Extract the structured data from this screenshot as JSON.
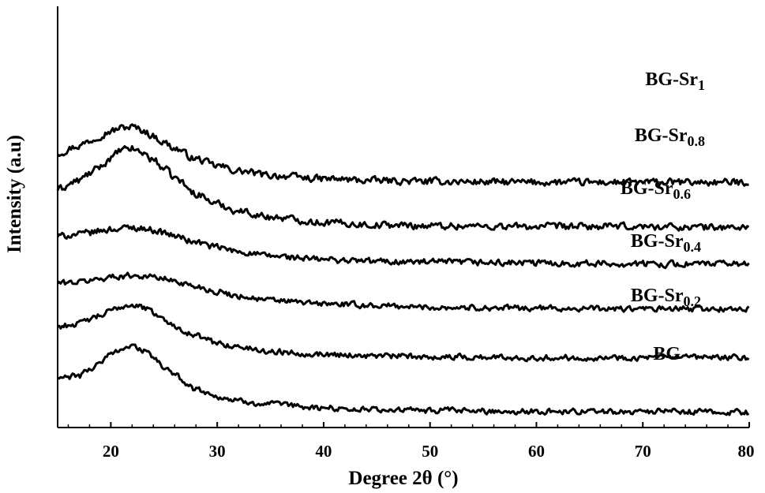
{
  "chart_data": {
    "type": "line",
    "title": "",
    "xlabel": "Degree 2θ (°)",
    "ylabel": "Intensity (a.u)",
    "xlim": [
      15,
      80
    ],
    "xticks": [
      "20",
      "30",
      "40",
      "50",
      "60",
      "70",
      "80"
    ],
    "y_ticks_shown": false,
    "grid": false,
    "legend": "none (series labeled directly above curves on the right)",
    "y_scale": "arbitrary units, stacked offset curves",
    "series": [
      {
        "name": "BG-Sr",
        "subscript": "1",
        "color": "#000000",
        "noise": 0.055,
        "x": [
          15,
          17,
          18,
          19,
          20,
          21,
          22,
          23,
          24,
          25,
          26,
          28,
          30,
          32,
          35,
          40,
          45,
          50,
          60,
          70,
          80
        ],
        "y": [
          0.92,
          1.0,
          1.06,
          1.12,
          1.17,
          1.21,
          1.22,
          1.18,
          1.11,
          1.04,
          0.97,
          0.85,
          0.77,
          0.71,
          0.66,
          0.62,
          0.6,
          0.59,
          0.58,
          0.58,
          0.58
        ]
      },
      {
        "name": "BG-Sr",
        "subscript": "0.8",
        "color": "#000000",
        "noise": 0.055,
        "x": [
          15,
          17,
          18,
          19,
          20,
          21,
          22,
          23,
          24,
          25,
          26,
          28,
          30,
          32,
          35,
          40,
          45,
          50,
          60,
          70,
          80
        ],
        "y": [
          0.5,
          0.6,
          0.68,
          0.76,
          0.86,
          0.95,
          0.97,
          0.92,
          0.84,
          0.74,
          0.63,
          0.45,
          0.33,
          0.25,
          0.18,
          0.12,
          0.09,
          0.08,
          0.07,
          0.07,
          0.06
        ]
      },
      {
        "name": "BG-Sr",
        "subscript": "0.6",
        "color": "#000000",
        "noise": 0.05,
        "x": [
          15,
          17,
          18,
          19,
          20,
          21,
          22,
          23,
          24,
          25,
          26,
          28,
          30,
          32,
          35,
          40,
          45,
          50,
          60,
          70,
          80
        ],
        "y": [
          -0.04,
          -0.02,
          0.0,
          0.02,
          0.04,
          0.05,
          0.06,
          0.05,
          0.03,
          0.0,
          -0.04,
          -0.11,
          -0.17,
          -0.22,
          -0.27,
          -0.31,
          -0.33,
          -0.34,
          -0.35,
          -0.36,
          -0.36
        ]
      },
      {
        "name": "BG-Sr",
        "subscript": "0.4",
        "color": "#000000",
        "noise": 0.045,
        "x": [
          15,
          17,
          18,
          19,
          20,
          21,
          22,
          23,
          24,
          25,
          26,
          28,
          30,
          32,
          35,
          40,
          45,
          50,
          60,
          70,
          80
        ],
        "y": [
          -0.58,
          -0.57,
          -0.55,
          -0.53,
          -0.51,
          -0.5,
          -0.49,
          -0.5,
          -0.51,
          -0.53,
          -0.56,
          -0.62,
          -0.68,
          -0.73,
          -0.78,
          -0.82,
          -0.84,
          -0.86,
          -0.87,
          -0.88,
          -0.88
        ]
      },
      {
        "name": "BG-Sr",
        "subscript": "0.2",
        "color": "#000000",
        "noise": 0.045,
        "x": [
          15,
          17,
          18,
          19,
          20,
          21,
          22,
          23,
          24,
          25,
          26,
          28,
          30,
          32,
          35,
          40,
          45,
          50,
          60,
          70,
          80
        ],
        "y": [
          -1.08,
          -1.05,
          -1.0,
          -0.96,
          -0.9,
          -0.85,
          -0.83,
          -0.86,
          -0.92,
          -1.0,
          -1.08,
          -1.19,
          -1.27,
          -1.32,
          -1.37,
          -1.4,
          -1.42,
          -1.43,
          -1.44,
          -1.44,
          -1.44
        ]
      },
      {
        "name": "BG",
        "subscript": "",
        "color": "#000000",
        "noise": 0.045,
        "x": [
          15,
          17,
          18,
          19,
          20,
          21,
          22,
          23,
          24,
          25,
          26,
          28,
          30,
          32,
          35,
          40,
          45,
          50,
          60,
          70,
          80
        ],
        "y": [
          -1.68,
          -1.65,
          -1.58,
          -1.49,
          -1.4,
          -1.33,
          -1.31,
          -1.35,
          -1.44,
          -1.55,
          -1.65,
          -1.8,
          -1.89,
          -1.94,
          -1.98,
          -2.02,
          -2.04,
          -2.05,
          -2.06,
          -2.06,
          -2.07
        ]
      }
    ]
  }
}
